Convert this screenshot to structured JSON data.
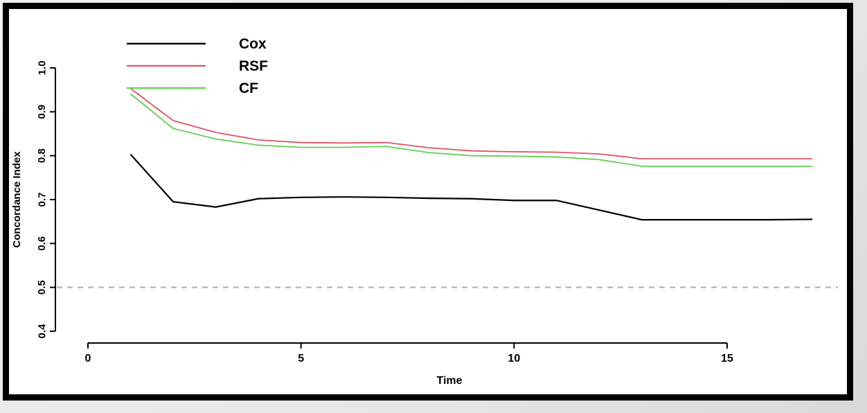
{
  "window": {
    "background_color": "#e7e7e7",
    "frame_border_color": "#000000",
    "plot_background_color": "#ffffff"
  },
  "chart_data": {
    "type": "line",
    "title": "",
    "xlabel": "Time",
    "ylabel": "Concordance Index",
    "xlim": [
      0,
      17.5
    ],
    "ylim": [
      0.4,
      1.0
    ],
    "x_ticks": [
      "0",
      "5",
      "10",
      "15"
    ],
    "x_tick_values": [
      0,
      5,
      10,
      15
    ],
    "y_ticks": [
      "0.4",
      "0.5",
      "0.6",
      "0.7",
      "0.8",
      "0.9",
      "1.0"
    ],
    "y_tick_values": [
      0.4,
      0.5,
      0.6,
      0.7,
      0.8,
      0.9,
      1.0
    ],
    "grid": false,
    "legend_position": "top-left-inside",
    "reference_line": {
      "y": 0.5,
      "style": "dashed",
      "color": "#b9b9b9"
    },
    "x": [
      1,
      2,
      3,
      4,
      5,
      6,
      7,
      8,
      9,
      10,
      11,
      12,
      13,
      14,
      15,
      16,
      17
    ],
    "series": [
      {
        "name": "Cox",
        "color": "#000000",
        "line_width": 2.2,
        "values": [
          0.803,
          0.695,
          0.683,
          0.702,
          0.705,
          0.706,
          0.705,
          0.703,
          0.702,
          0.698,
          0.698,
          0.676,
          0.654,
          0.654,
          0.654,
          0.654,
          0.655
        ]
      },
      {
        "name": "RSF",
        "color": "#df536b",
        "line_width": 1.8,
        "values": [
          0.953,
          0.88,
          0.853,
          0.836,
          0.83,
          0.829,
          0.83,
          0.818,
          0.811,
          0.809,
          0.808,
          0.804,
          0.793,
          0.793,
          0.793,
          0.793,
          0.793
        ]
      },
      {
        "name": "CF",
        "color": "#61d04f",
        "line_width": 1.8,
        "values": [
          0.941,
          0.862,
          0.838,
          0.824,
          0.819,
          0.819,
          0.821,
          0.807,
          0.8,
          0.799,
          0.797,
          0.791,
          0.776,
          0.776,
          0.776,
          0.776,
          0.776
        ]
      }
    ]
  }
}
